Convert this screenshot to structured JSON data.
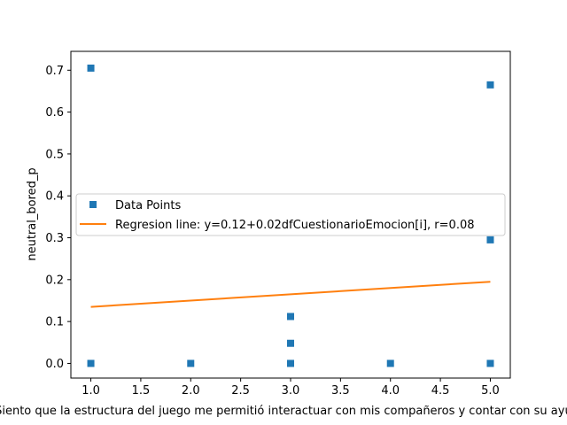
{
  "chart_data": {
    "type": "scatter",
    "xlabel": "Siento que la estructura del juego me permitió interactuar con mis compañeros y contar con su ayuda",
    "ylabel": "neutral_bored_p",
    "xlim": [
      0.8,
      5.2
    ],
    "ylim": [
      -0.035,
      0.745
    ],
    "xticks": [
      1.0,
      1.5,
      2.0,
      2.5,
      3.0,
      3.5,
      4.0,
      4.5,
      5.0
    ],
    "xtick_labels": [
      "1.0",
      "1.5",
      "2.0",
      "2.5",
      "3.0",
      "3.5",
      "4.0",
      "4.5",
      "5.0"
    ],
    "yticks": [
      0.0,
      0.1,
      0.2,
      0.3,
      0.4,
      0.5,
      0.6,
      0.7
    ],
    "ytick_labels": [
      "0.0",
      "0.1",
      "0.2",
      "0.3",
      "0.4",
      "0.5",
      "0.6",
      "0.7"
    ],
    "grid": false,
    "legend_position": "center-left",
    "series": [
      {
        "name": "Data Points",
        "kind": "scatter",
        "marker": "square",
        "color": "#1f77b4",
        "x": [
          1,
          1,
          2,
          3,
          3,
          3,
          4,
          5,
          5,
          5
        ],
        "y": [
          0.705,
          0.0,
          0.0,
          0.112,
          0.048,
          0.0,
          0.0,
          0.665,
          0.295,
          0.0
        ]
      },
      {
        "name": "Regresion line: y=0.12+0.02dfCuestionarioEmocion[i], r=0.08",
        "kind": "line",
        "color": "#ff7f0e",
        "x": [
          1,
          5
        ],
        "y": [
          0.135,
          0.195
        ]
      }
    ]
  }
}
